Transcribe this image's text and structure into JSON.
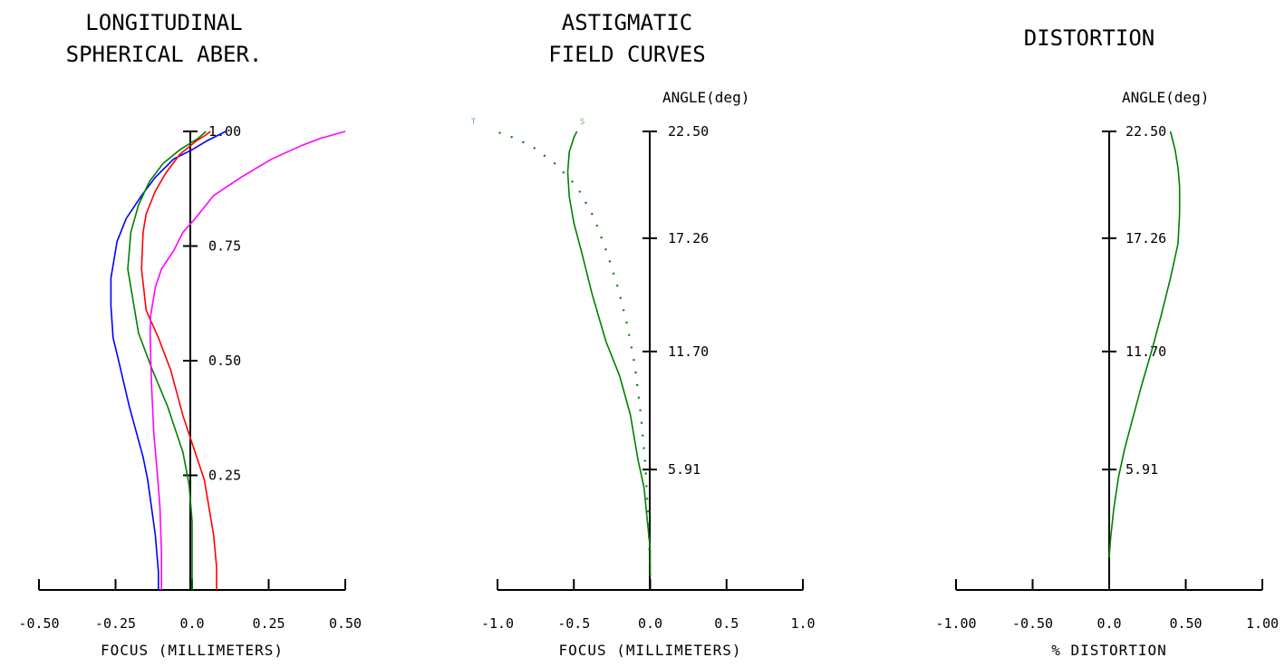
{
  "chart_data": [
    {
      "type": "line",
      "title": [
        "LONGITUDINAL",
        "SPHERICAL ABER."
      ],
      "xlabel": "FOCUS (MILLIMETERS)",
      "ylabel": "",
      "xlim": [
        -0.5,
        0.5
      ],
      "ylim": [
        0,
        1
      ],
      "xtick_labels": [
        "-0.50",
        "-0.25",
        "0.0",
        "0.25",
        "0.50"
      ],
      "xticks": [
        -0.5,
        -0.25,
        0,
        0.25,
        0.5
      ],
      "ytick_labels": [
        "0.25",
        "0.50",
        "0.75",
        "1.00"
      ],
      "yticks": [
        0.25,
        0.5,
        0.75,
        1.0
      ],
      "grid": false,
      "series": [
        {
          "color": "#0000ff",
          "points": [
            [
              -0.11,
              0
            ],
            [
              -0.11,
              0.04
            ],
            [
              -0.12,
              0.12
            ],
            [
              -0.145,
              0.24
            ],
            [
              -0.16,
              0.29
            ],
            [
              -0.205,
              0.4
            ],
            [
              -0.24,
              0.5
            ],
            [
              -0.258,
              0.55
            ],
            [
              -0.265,
              0.62
            ],
            [
              -0.265,
              0.68
            ],
            [
              -0.245,
              0.76
            ],
            [
              -0.215,
              0.81
            ],
            [
              -0.165,
              0.86
            ],
            [
              -0.12,
              0.9
            ],
            [
              -0.06,
              0.94
            ],
            [
              0,
              0.96
            ],
            [
              0.05,
              0.98
            ],
            [
              0.11,
              1.0
            ]
          ]
        },
        {
          "color": "#008000",
          "points": [
            [
              0,
              0
            ],
            [
              0,
              0.08
            ],
            [
              0,
              0.15
            ],
            [
              -0.01,
              0.23
            ],
            [
              -0.03,
              0.3
            ],
            [
              -0.08,
              0.4
            ],
            [
              -0.13,
              0.48
            ],
            [
              -0.175,
              0.56
            ],
            [
              -0.19,
              0.62
            ],
            [
              -0.21,
              0.7
            ],
            [
              -0.2,
              0.78
            ],
            [
              -0.175,
              0.84
            ],
            [
              -0.14,
              0.89
            ],
            [
              -0.095,
              0.93
            ],
            [
              -0.04,
              0.96
            ],
            [
              0.02,
              0.985
            ],
            [
              0.045,
              1.0
            ]
          ]
        },
        {
          "color": "#ff0000",
          "points": [
            [
              0.08,
              0
            ],
            [
              0.08,
              0.05
            ],
            [
              0.07,
              0.12
            ],
            [
              0.06,
              0.16
            ],
            [
              0.04,
              0.24
            ],
            [
              0.01,
              0.3
            ],
            [
              -0.03,
              0.38
            ],
            [
              -0.07,
              0.48
            ],
            [
              -0.11,
              0.55
            ],
            [
              -0.15,
              0.61
            ],
            [
              -0.165,
              0.7
            ],
            [
              -0.16,
              0.78
            ],
            [
              -0.15,
              0.82
            ],
            [
              -0.12,
              0.87
            ],
            [
              -0.085,
              0.91
            ],
            [
              -0.04,
              0.95
            ],
            [
              0.015,
              0.98
            ],
            [
              0.04,
              0.99
            ],
            [
              0.06,
              1.0
            ]
          ]
        },
        {
          "color": "#ff00ff",
          "points": [
            [
              -0.1,
              0
            ],
            [
              -0.1,
              0.08
            ],
            [
              -0.105,
              0.18
            ],
            [
              -0.113,
              0.25
            ],
            [
              -0.125,
              0.34
            ],
            [
              -0.132,
              0.44
            ],
            [
              -0.135,
              0.5
            ],
            [
              -0.137,
              0.56
            ],
            [
              -0.135,
              0.6
            ],
            [
              -0.12,
              0.66
            ],
            [
              -0.1,
              0.7
            ],
            [
              -0.06,
              0.74
            ],
            [
              -0.03,
              0.78
            ],
            [
              0.01,
              0.81
            ],
            [
              0.07,
              0.86
            ],
            [
              0.16,
              0.9
            ],
            [
              0.26,
              0.94
            ],
            [
              0.36,
              0.97
            ],
            [
              0.42,
              0.985
            ],
            [
              0.5,
              1.0
            ]
          ]
        }
      ]
    },
    {
      "type": "line",
      "title": [
        "ASTIGMATIC",
        "FIELD CURVES"
      ],
      "xlabel": "FOCUS (MILLIMETERS)",
      "ylabel": "ANGLE(deg)",
      "xlim": [
        -1.0,
        1.0
      ],
      "ylim": [
        0,
        22.5
      ],
      "xtick_labels": [
        "-1.0",
        "-0.5",
        "0.0",
        "0.5",
        "1.0"
      ],
      "xticks": [
        -1.0,
        -0.5,
        0,
        0.5,
        1.0
      ],
      "ytick_labels": [
        "5.91",
        "11.70",
        "17.26",
        "22.50"
      ],
      "yticks": [
        5.91,
        11.7,
        17.26,
        22.5
      ],
      "grid": false,
      "legend": [
        "T",
        "S"
      ],
      "series": [
        {
          "name": "T",
          "color": "#008000",
          "dash": true,
          "points": [
            [
              0,
              0.7
            ],
            [
              -0.01,
              3.0
            ],
            [
              -0.03,
              6.0
            ],
            [
              -0.06,
              8.5
            ],
            [
              -0.1,
              11.0
            ],
            [
              -0.15,
              13.0
            ],
            [
              -0.21,
              14.8
            ],
            [
              -0.28,
              16.5
            ],
            [
              -0.37,
              18.3
            ],
            [
              -0.48,
              19.8
            ],
            [
              -0.62,
              20.9
            ],
            [
              -0.78,
              21.8
            ],
            [
              -0.96,
              22.4
            ],
            [
              -1.05,
              22.5
            ]
          ]
        },
        {
          "name": "S",
          "color": "#008000",
          "dash": false,
          "points": [
            [
              0,
              0.7
            ],
            [
              0,
              2.0
            ],
            [
              -0.02,
              3.5
            ],
            [
              -0.04,
              5.0
            ],
            [
              -0.08,
              6.4
            ],
            [
              -0.13,
              8.6
            ],
            [
              -0.2,
              10.5
            ],
            [
              -0.29,
              12.2
            ],
            [
              -0.38,
              14.5
            ],
            [
              -0.45,
              16.6
            ],
            [
              -0.5,
              18.0
            ],
            [
              -0.53,
              19.3
            ],
            [
              -0.54,
              20.5
            ],
            [
              -0.53,
              21.5
            ],
            [
              -0.5,
              22.2
            ],
            [
              -0.48,
              22.5
            ]
          ]
        }
      ]
    },
    {
      "type": "line",
      "title": [
        "DISTORTION"
      ],
      "xlabel": "% DISTORTION",
      "ylabel": "ANGLE(deg)",
      "xlim": [
        -1.0,
        1.0
      ],
      "ylim": [
        0,
        22.5
      ],
      "xtick_labels": [
        "-1.00",
        "-0.50",
        "0.0",
        "0.50",
        "1.00"
      ],
      "xticks": [
        -1.0,
        -0.5,
        0,
        0.5,
        1.0
      ],
      "ytick_labels": [
        "5.91",
        "11.70",
        "17.26",
        "22.50"
      ],
      "yticks": [
        5.91,
        11.7,
        17.26,
        22.5
      ],
      "grid": false,
      "series": [
        {
          "color": "#008000",
          "points": [
            [
              0,
              1.6
            ],
            [
              0.01,
              2.6
            ],
            [
              0.03,
              4.0
            ],
            [
              0.06,
              5.5
            ],
            [
              0.1,
              6.9
            ],
            [
              0.15,
              8.3
            ],
            [
              0.21,
              10.0
            ],
            [
              0.28,
              11.8
            ],
            [
              0.34,
              13.5
            ],
            [
              0.4,
              15.3
            ],
            [
              0.45,
              17.0
            ],
            [
              0.46,
              18.5
            ],
            [
              0.46,
              19.8
            ],
            [
              0.45,
              20.7
            ],
            [
              0.43,
              21.6
            ],
            [
              0.4,
              22.5
            ]
          ]
        }
      ]
    }
  ]
}
